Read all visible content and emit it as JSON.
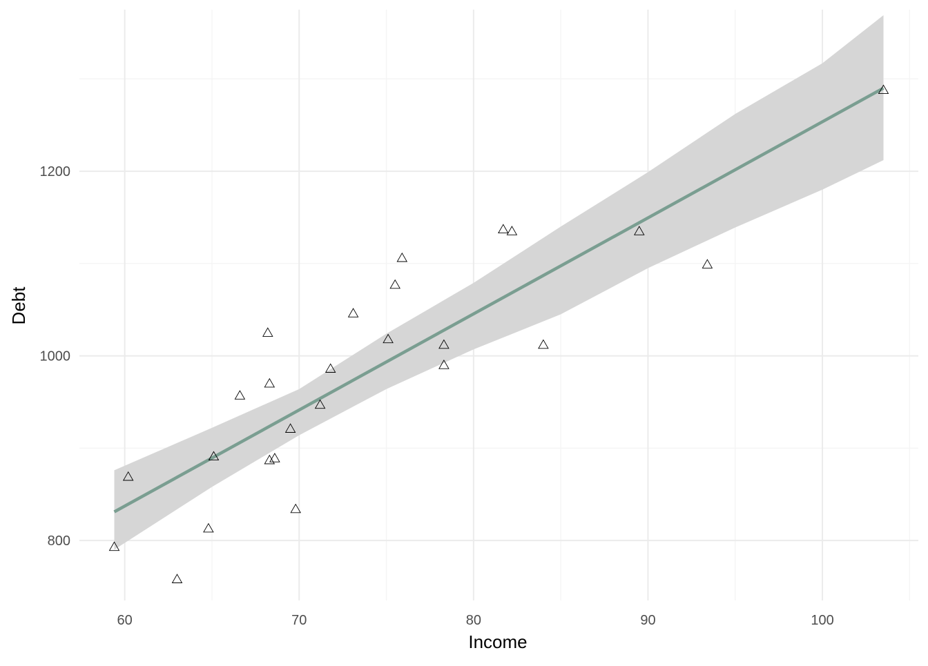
{
  "chart_data": {
    "type": "scatter",
    "xlabel": "Income",
    "ylabel": "Debt",
    "xlim": [
      57.4,
      105.5
    ],
    "ylim": [
      735,
      1375
    ],
    "x_ticks": [
      60,
      70,
      80,
      90,
      100
    ],
    "x_tick_labels": [
      "60",
      "70",
      "80",
      "90",
      "100"
    ],
    "x_minor_ticks": [
      65,
      75,
      85,
      95,
      105
    ],
    "y_ticks": [
      800,
      1000,
      1200
    ],
    "y_tick_labels": [
      "800",
      "1000",
      "1200"
    ],
    "y_minor_ticks": [
      900,
      1100,
      1300
    ],
    "grid": true,
    "marker": "open-triangle",
    "points": [
      {
        "x": 59.4,
        "y": 793
      },
      {
        "x": 60.2,
        "y": 869
      },
      {
        "x": 63.0,
        "y": 758
      },
      {
        "x": 64.8,
        "y": 813
      },
      {
        "x": 65.1,
        "y": 891
      },
      {
        "x": 66.6,
        "y": 957
      },
      {
        "x": 68.2,
        "y": 1025
      },
      {
        "x": 68.3,
        "y": 970
      },
      {
        "x": 68.3,
        "y": 887
      },
      {
        "x": 68.6,
        "y": 889
      },
      {
        "x": 69.5,
        "y": 921
      },
      {
        "x": 69.8,
        "y": 834
      },
      {
        "x": 71.2,
        "y": 947
      },
      {
        "x": 71.8,
        "y": 986
      },
      {
        "x": 73.1,
        "y": 1046
      },
      {
        "x": 75.1,
        "y": 1018
      },
      {
        "x": 75.5,
        "y": 1077
      },
      {
        "x": 75.9,
        "y": 1106
      },
      {
        "x": 78.3,
        "y": 1012
      },
      {
        "x": 78.3,
        "y": 990
      },
      {
        "x": 81.7,
        "y": 1137
      },
      {
        "x": 82.2,
        "y": 1135
      },
      {
        "x": 84.0,
        "y": 1012
      },
      {
        "x": 89.5,
        "y": 1135
      },
      {
        "x": 93.4,
        "y": 1099
      },
      {
        "x": 103.5,
        "y": 1288
      }
    ],
    "fit_line": {
      "method": "linear",
      "x": [
        59.4,
        103.5
      ],
      "y": [
        831,
        1290
      ],
      "color": "#7a9e91"
    },
    "confidence_band": {
      "color": "#d6d6d6",
      "x": [
        59.4,
        65,
        70,
        75,
        80,
        85,
        90,
        95,
        100,
        103.5
      ],
      "lower": [
        790,
        858,
        914,
        964,
        1007,
        1045,
        1095,
        1139,
        1180,
        1212
      ],
      "upper": [
        876,
        922,
        964,
        1024,
        1079,
        1140,
        1199,
        1262,
        1317,
        1369
      ]
    },
    "colors": {
      "background": "#ffffff",
      "major_grid": "#ebebeb",
      "minor_grid": "#f4f4f4",
      "marker_stroke": "#000000"
    }
  }
}
